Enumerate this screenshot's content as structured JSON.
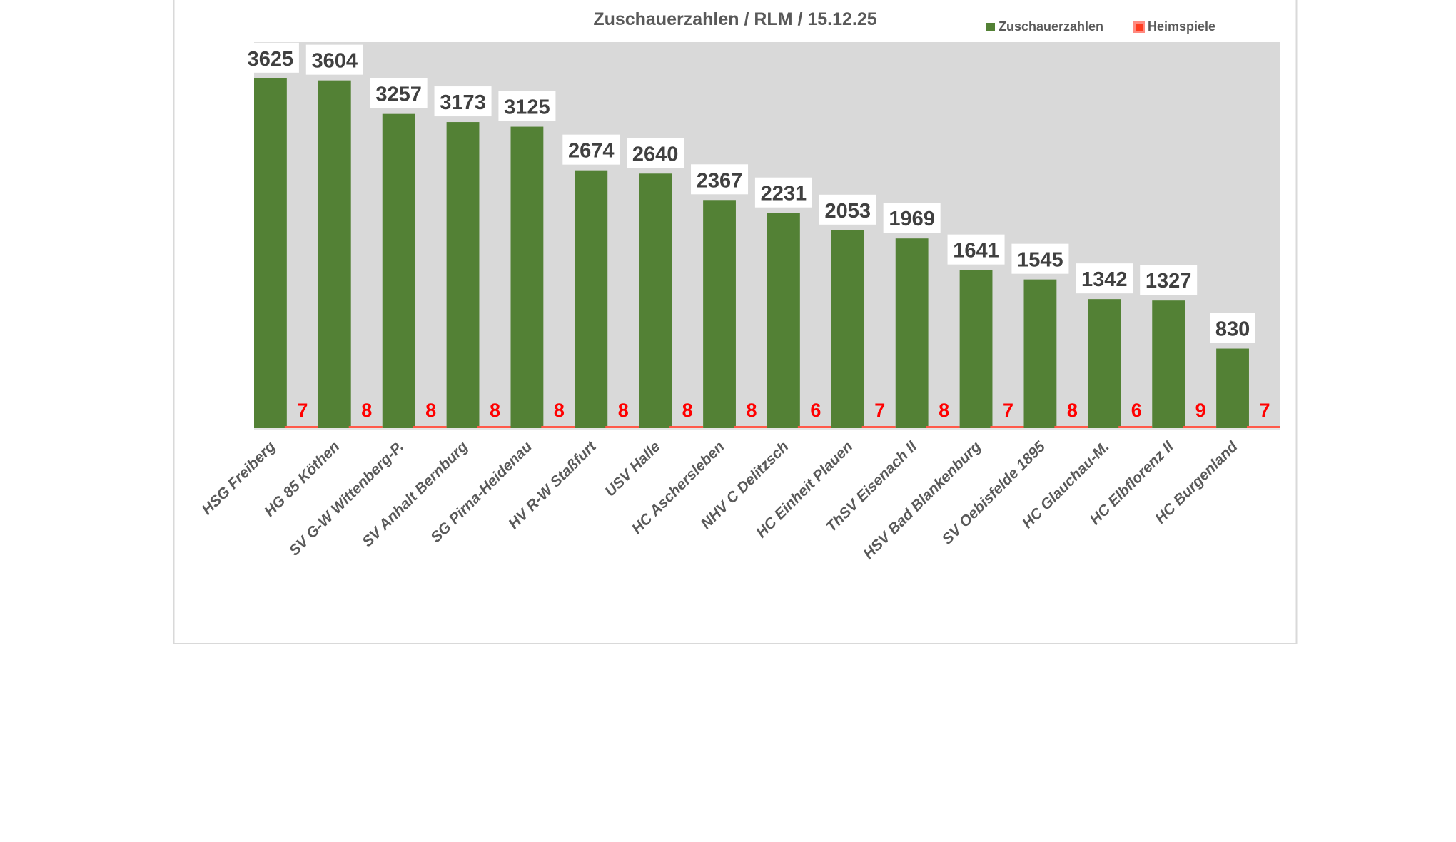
{
  "chart_data": {
    "type": "bar",
    "title": "Zuschauerzahlen / RLM / 15.12.25",
    "xlabel": "",
    "ylabel": "",
    "ylim": [
      0,
      4000
    ],
    "grid": false,
    "legend_position": "top-right",
    "categories": [
      "HSG Freiberg",
      "HG 85 Köthen",
      "SV G-W Wittenberg-P.",
      "SV Anhalt Bernburg",
      "SG Pirna-Heidenau",
      "HV R-W Staßfurt",
      "USV Halle",
      "HC Aschersleben",
      "NHV C Delitzsch",
      "HC Einheit Plauen",
      "ThSV Eisenach II",
      "HSV Bad Blankenburg",
      "SV Oebisfelde 1895",
      "HC Glauchau-M.",
      "HC Elbflorenz II",
      "HC Burgenland"
    ],
    "series": [
      {
        "name": "Zuschauerzahlen",
        "color": "#538135",
        "values": [
          3625,
          3604,
          3257,
          3173,
          3125,
          2674,
          2640,
          2367,
          2231,
          2053,
          1969,
          1641,
          1545,
          1342,
          1327,
          830
        ]
      },
      {
        "name": "Heimspiele",
        "color": "#ff5a4a",
        "values": [
          7,
          8,
          8,
          8,
          8,
          8,
          8,
          8,
          6,
          7,
          8,
          7,
          8,
          6,
          9,
          7
        ]
      }
    ]
  }
}
